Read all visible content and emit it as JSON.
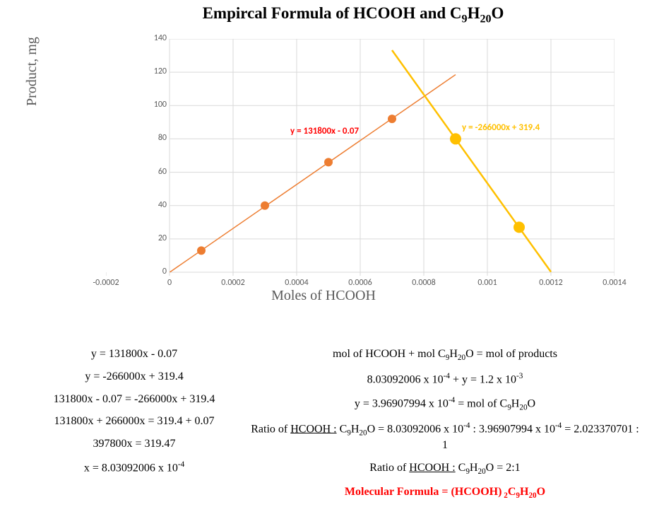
{
  "title_html": "Empircal Formula of HCOOH and C<sub>9</sub>H<sub>20</sub>O",
  "y_axis_title": "Product, mg",
  "x_axis_title": "Moles of HCOOH",
  "chart": {
    "type": "scatter+line",
    "xlim": [
      -0.0002,
      0.0014
    ],
    "ylim": [
      0,
      140
    ],
    "xtick_step": 0.0002,
    "ytick_step": 20,
    "xticks": [
      "-0.0002",
      "0",
      "0.0002",
      "0.0004",
      "0.0006",
      "0.0008",
      "0.001",
      "0.0012",
      "0.0014"
    ],
    "yticks": [
      "0",
      "20",
      "40",
      "60",
      "80",
      "100",
      "120",
      "140"
    ],
    "grid_color": "#d9d9d9",
    "axis_color": "#d9d9d9",
    "background_color": "#ffffff",
    "tick_font_size": 12,
    "tick_font_color": "#595959",
    "series": [
      {
        "name": "orange-series",
        "color": "#ed7d31",
        "marker": "circle",
        "marker_size": 6,
        "line_width": 1.5,
        "points": [
          [
            0.0001,
            13
          ],
          [
            0.0003,
            40
          ],
          [
            0.0005,
            66
          ],
          [
            0.0007,
            92
          ]
        ],
        "trendline": {
          "slope": 131800,
          "intercept": -0.07,
          "x_from": 1e-06,
          "x_to": 0.0009
        },
        "equation_label": "y = 131800x - 0.07",
        "equation_color": "#ff0000",
        "equation_pos": {
          "x": 0.00038,
          "y": 88
        }
      },
      {
        "name": "yellow-series",
        "color": "#ffc000",
        "marker": "circle",
        "marker_size": 8,
        "line_width": 2.5,
        "points": [
          [
            0.0009,
            80
          ],
          [
            0.0011,
            27
          ]
        ],
        "trendline": {
          "slope": -266000,
          "intercept": 319.4,
          "x_from": 0.0007,
          "x_to": 0.0012
        },
        "equation_label": "y = -266000x + 319.4",
        "equation_color": "#ffc000",
        "equation_pos": {
          "x": 0.00092,
          "y": 90
        }
      }
    ]
  },
  "calc_left_lines": [
    "y = 131800x - 0.07",
    "y = -266000x + 319.4",
    "131800x - 0.07 = -266000x + 319.4",
    "131800x + 266000x = 319.4 + 0.07",
    "397800x = 319.47",
    "x = 8.03092006 x 10<sup>-4</sup>"
  ],
  "calc_right_lines": [
    "mol of HCOOH + mol C<sub>9</sub>H<sub>20</sub>O = mol of products",
    "8.03092006 x 10<sup>-4</sup> + y = 1.2 x 10<sup>-3</sup>",
    "y = 3.96907994 x 10<sup>-4</sup> = mol of C<sub>9</sub>H<sub>20</sub>O",
    "Ratio of <span class=\"underline\">HCOOH :</span> C<sub>9</sub>H<sub>20</sub>O = 8.03092006 x 10<sup>-4</sup> : 3.96907994 x 10<sup>-4</sup> = 2.023370701 : 1",
    "Ratio of <span class=\"underline\">HCOOH :</span> C<sub>9</sub>H<sub>20</sub>O = 2:1",
    "<span class=\"red-bold\">Molecular Formula = (HCOOH)<sub> 2</sub>C<sub>9</sub>H<sub>20</sub>O</span>"
  ]
}
